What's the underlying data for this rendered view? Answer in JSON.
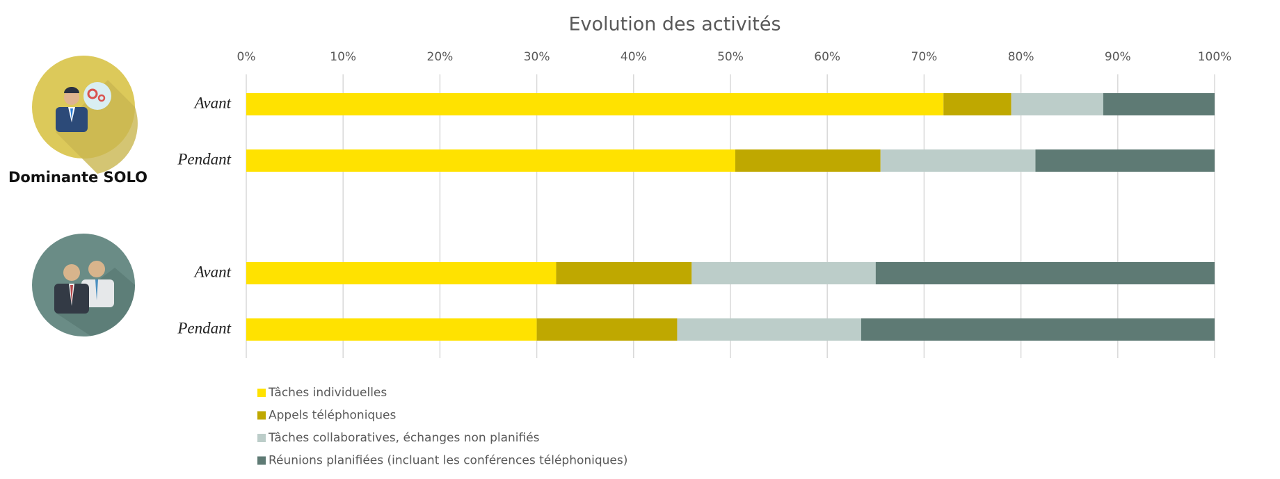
{
  "chart_data": {
    "type": "stacked-barh",
    "title": "Evolution des activités",
    "annotations": [
      "Dominante SOLO"
    ],
    "categories": [
      "Avant",
      "Pendant",
      null,
      "Avant",
      "Pendant"
    ],
    "series": [
      {
        "name": "Tâches individuelles",
        "color": "#ffe200",
        "values": [
          72,
          50.5,
          null,
          32,
          30
        ]
      },
      {
        "name": "Appels téléphoniques",
        "color": "#bfa800",
        "values": [
          7,
          15,
          null,
          14,
          14.5
        ]
      },
      {
        "name": "Tâches collaboratives, échanges non planifiés",
        "color": "#bccdc9",
        "values": [
          9.5,
          16,
          null,
          19,
          19
        ]
      },
      {
        "name": "Réunions planifiées (incluant les conférences téléphoniques)",
        "color": "#5e7a74",
        "values": [
          11.5,
          18.5,
          null,
          35,
          36.5
        ]
      }
    ],
    "xlim": [
      0,
      100
    ],
    "xticks": [
      {
        "value": 0,
        "label": "0%"
      },
      {
        "value": 10,
        "label": "10%"
      },
      {
        "value": 20,
        "label": "20%"
      },
      {
        "value": 30,
        "label": "30%"
      },
      {
        "value": 40,
        "label": "40%"
      },
      {
        "value": 50,
        "label": "50%"
      },
      {
        "value": 60,
        "label": "60%"
      },
      {
        "value": 70,
        "label": "70%"
      },
      {
        "value": 80,
        "label": "80%"
      },
      {
        "value": 90,
        "label": "90%"
      },
      {
        "value": 100,
        "label": "100%"
      }
    ],
    "grid": true,
    "legend": "bottom-left"
  }
}
